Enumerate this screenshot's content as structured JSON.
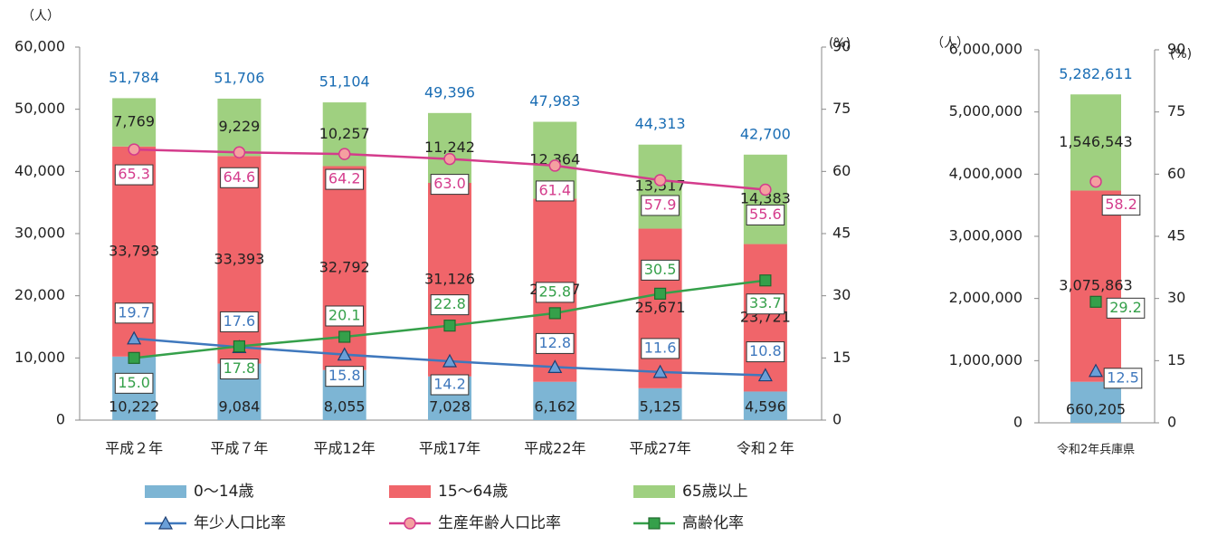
{
  "chart_data": [
    {
      "type": "bar",
      "stacked": true,
      "ylabel": "（人）",
      "y2label": "(%)",
      "categories": [
        "平成２年",
        "平成７年",
        "平成12年",
        "平成17年",
        "平成22年",
        "平成27年",
        "令和２年"
      ],
      "ylim": [
        0,
        60000
      ],
      "yticks": [
        0,
        {
          "value": 10000,
          "label": "10,000"
        },
        {
          "value": 20000,
          "label": "20,000"
        },
        {
          "value": 30000,
          "label": "30,000"
        },
        {
          "value": 40000,
          "label": "40,000"
        },
        {
          "value": 50000,
          "label": "50,000"
        },
        {
          "value": 60000,
          "label": "60,000"
        }
      ],
      "y2lim": [
        0,
        90
      ],
      "y2ticks": [
        0,
        15,
        30,
        45,
        60,
        75,
        90
      ],
      "series": [
        {
          "name": "0～14歳",
          "type": "bar",
          "color": "#7db5d4",
          "values": [
            10222,
            9084,
            8055,
            7028,
            6162,
            5125,
            4596
          ],
          "value_labels": [
            "10,222",
            "9,084",
            "8,055",
            "7,028",
            "6,162",
            "5,125",
            "4,596"
          ]
        },
        {
          "name": "15～64歳",
          "type": "bar",
          "color": "#f0656a",
          "values": [
            33793,
            33393,
            32792,
            31126,
            29457,
            25671,
            23721
          ],
          "value_labels": [
            "33,793",
            "33,393",
            "32,792",
            "31,126",
            "29,457",
            "25,671",
            "23,721"
          ]
        },
        {
          "name": "65歳以上",
          "type": "bar",
          "color": "#9fd080",
          "values": [
            7769,
            9229,
            10257,
            11242,
            12364,
            13517,
            14383
          ],
          "value_labels": [
            "7,769",
            "9,229",
            "10,257",
            "11,242",
            "12,364",
            "13,517",
            "14,383"
          ]
        },
        {
          "name": "年少人口比率",
          "type": "line",
          "axis": "y2",
          "marker": "triangle",
          "color": "#3f78bd",
          "values": [
            19.7,
            17.6,
            15.8,
            14.2,
            12.8,
            11.6,
            10.8
          ]
        },
        {
          "name": "生産年齢人口比率",
          "type": "line",
          "axis": "y2",
          "marker": "circle",
          "color": "#d43c8c",
          "values": [
            65.3,
            64.6,
            64.2,
            63.0,
            61.4,
            57.9,
            55.6
          ],
          "value_labels": [
            "65.3",
            "64.6",
            "64.2",
            "63.0",
            "61.4",
            "57.9",
            "55.6"
          ]
        },
        {
          "name": "高齢化率",
          "type": "line",
          "axis": "y2",
          "marker": "square",
          "color": "#35a04a",
          "values": [
            15.0,
            17.8,
            20.1,
            22.8,
            25.8,
            30.5,
            33.7
          ],
          "value_labels": [
            "15.0",
            "17.8",
            "20.1",
            "22.8",
            "25.8",
            "30.5",
            "33.7"
          ]
        }
      ],
      "totals": [
        51784,
        51706,
        51104,
        49396,
        47983,
        44313,
        42700
      ],
      "total_labels": [
        "51,784",
        "51,706",
        "51,104",
        "49,396",
        "47,983",
        "44,313",
        "42,700"
      ],
      "total_color": "#1a6db4",
      "legend": "bottom"
    },
    {
      "type": "bar",
      "stacked": true,
      "ylabel": "（人）",
      "y2label": "(%)",
      "categories": [
        "令和2年兵庫県"
      ],
      "ylim": [
        0,
        6000000
      ],
      "yticks": [
        0,
        {
          "value": 1000000,
          "label": "1,000,000"
        },
        {
          "value": 2000000,
          "label": "2,000,000"
        },
        {
          "value": 3000000,
          "label": "3,000,000"
        },
        {
          "value": 4000000,
          "label": "4,000,000"
        },
        {
          "value": 5000000,
          "label": "5,000,000"
        },
        {
          "value": 6000000,
          "label": "6,000,000"
        }
      ],
      "y2lim": [
        0,
        90
      ],
      "y2ticks": [
        0,
        15,
        30,
        45,
        60,
        75,
        90
      ],
      "series": [
        {
          "type": "bar",
          "color": "#7db5d4",
          "values": [
            660205
          ],
          "value_labels": [
            "660,205"
          ]
        },
        {
          "type": "bar",
          "color": "#f0656a",
          "values": [
            3075863
          ],
          "value_labels": [
            "3,075,863"
          ]
        },
        {
          "type": "bar",
          "color": "#9fd080",
          "values": [
            1546543
          ],
          "value_labels": [
            "1,546,543"
          ]
        },
        {
          "type": "line",
          "axis": "y2",
          "marker": "triangle",
          "color": "#3f78bd",
          "values": [
            12.5
          ]
        },
        {
          "type": "line",
          "axis": "y2",
          "marker": "circle",
          "color": "#d43c8c",
          "values": [
            58.2
          ]
        },
        {
          "type": "line",
          "axis": "y2",
          "marker": "square",
          "color": "#35a04a",
          "values": [
            29.2
          ]
        }
      ],
      "totals": [
        5282611
      ],
      "total_labels": [
        "5,282,611"
      ],
      "total_color": "#1a6db4"
    }
  ]
}
